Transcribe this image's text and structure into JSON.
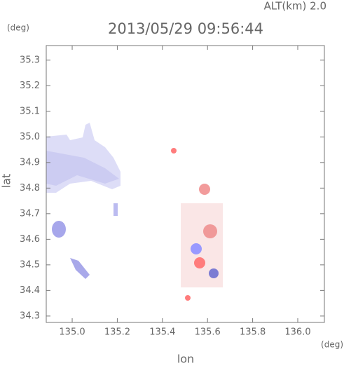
{
  "chart_data": {
    "type": "map",
    "title": "2013/05/29 09:56:44",
    "annotation": "ALT(km) 2.0",
    "y_unit": "(deg)",
    "x_unit": "(deg)",
    "xlabel": "lon",
    "ylabel": "lat",
    "xlim": [
      134.885,
      136.118
    ],
    "ylim": [
      34.275,
      35.357
    ],
    "xticks": [
      {
        "value": 135,
        "label": "135.0"
      },
      135.2,
      135.4,
      135.6,
      135.8,
      {
        "value": 136,
        "label": "136.0"
      }
    ],
    "yticks": [
      34.3,
      34.4,
      34.5,
      34.6,
      34.7,
      34.8,
      34.9,
      {
        "value": 35,
        "label": "35.0"
      },
      35.1,
      35.2,
      35.3
    ]
  }
}
